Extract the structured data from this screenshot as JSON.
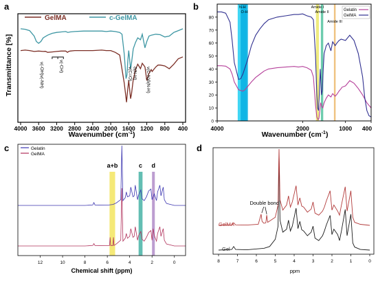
{
  "panels": [
    {
      "letter": "a"
    },
    {
      "letter": "b"
    },
    {
      "letter": "c"
    },
    {
      "letter": "d"
    }
  ],
  "chart_data": [
    {
      "type": "line",
      "panel": "a",
      "xlabel": "Wavenumber (cm",
      "xlabel_sup": "-1",
      "xlabel_close": ")",
      "ylabel": "Transmittance [%]",
      "xlim": [
        4000,
        400
      ],
      "x_reversed": true,
      "xticks": [
        4000,
        3600,
        3200,
        2800,
        2400,
        2000,
        1600,
        1200,
        800,
        400
      ],
      "xtick_labels": [
        "4000",
        "3600",
        "3200",
        "2800",
        "2400",
        "2000",
        "1600",
        "1200",
        "800",
        "400"
      ],
      "y_offset_scale": [
        0,
        10
      ],
      "colors": {
        "GelMA": "#7b2e25",
        "c-GelMA": "#3d96a3"
      },
      "series": [
        {
          "name": "GelMA",
          "x": [
            4000,
            3900,
            3800,
            3700,
            3600,
            3500,
            3450,
            3400,
            3300,
            3200,
            3100,
            3000,
            2960,
            2930,
            2900,
            2800,
            2700,
            2600,
            2400,
            2200,
            2100,
            2000,
            1900,
            1800,
            1700,
            1650,
            1630,
            1600,
            1560,
            1540,
            1500,
            1450,
            1400,
            1340,
            1300,
            1240,
            1200,
            1150,
            1100,
            1080,
            1000,
            950,
            900,
            800,
            700,
            600,
            500,
            400
          ],
          "values": [
            7.0,
            7.05,
            7.0,
            6.9,
            6.95,
            6.9,
            6.92,
            6.8,
            6.85,
            6.9,
            6.95,
            6.95,
            6.8,
            6.9,
            6.95,
            7.0,
            7.0,
            7.0,
            7.0,
            7.05,
            7.0,
            7.0,
            6.8,
            6.5,
            3.4,
            1.3,
            2.4,
            3.7,
            1.7,
            2.2,
            3.8,
            4.9,
            5.5,
            5.0,
            5.6,
            5.2,
            3.7,
            4.5,
            4.9,
            4.7,
            5.2,
            5.4,
            5.4,
            5.3,
            5.0,
            5.5,
            6.1,
            6.3
          ]
        },
        {
          "name": "c-GelMA",
          "x": [
            4000,
            3900,
            3800,
            3700,
            3650,
            3600,
            3550,
            3500,
            3400,
            3300,
            3200,
            3100,
            3000,
            2950,
            2900,
            2800,
            2600,
            2400,
            2200,
            2100,
            2000,
            1900,
            1800,
            1750,
            1700,
            1660,
            1640,
            1620,
            1600,
            1560,
            1540,
            1500,
            1450,
            1400,
            1340,
            1300,
            1240,
            1200,
            1150,
            1100,
            1000,
            900,
            800,
            700,
            600,
            500,
            400
          ],
          "values": [
            9.4,
            9.35,
            9.2,
            8.6,
            8.0,
            7.8,
            8.0,
            8.4,
            8.7,
            8.9,
            9.0,
            9.05,
            9.1,
            9.0,
            9.05,
            9.1,
            9.15,
            9.15,
            9.15,
            9.1,
            9.15,
            9.1,
            9.0,
            8.8,
            6.6,
            3.9,
            4.3,
            5.9,
            7.0,
            5.0,
            5.6,
            7.2,
            7.9,
            8.4,
            8.2,
            8.8,
            7.3,
            8.0,
            8.6,
            8.7,
            8.8,
            8.75,
            8.5,
            8.6,
            9.0,
            9.2,
            9.4
          ]
        }
      ],
      "annotations": [
        {
          "text": "v(-OH)v(-NH)",
          "x": 3600
        },
        {
          "text": "v(-CH)",
          "x": 3170
        },
        {
          "text": "v(C=O)",
          "x": 1640
        },
        {
          "text": "δ(N-H)",
          "x": 1540
        },
        {
          "text": "v(C-N)δ(N-H)",
          "x": 1240
        }
      ]
    },
    {
      "type": "line",
      "panel": "b",
      "xlabel": "Wavenumber (cm",
      "xlabel_sup": "-1",
      "xlabel_close": ")",
      "xlim": [
        4000,
        400
      ],
      "x_reversed": true,
      "xticks": [
        4000,
        2000,
        1000,
        400
      ],
      "xtick_labels": [
        "4000",
        "2000",
        "1000",
        "400"
      ],
      "ylim": [
        0,
        90
      ],
      "yticks": [
        0,
        10,
        20,
        30,
        40,
        50,
        60,
        70,
        80
      ],
      "ytick_labels": [
        "0",
        "10",
        "20",
        "30",
        "40",
        "50",
        "60",
        "70",
        "80"
      ],
      "legend_position": "top-right",
      "colors": {
        "Gelatin": "#b5409a",
        "GelMA": "#2f2f8f"
      },
      "bands": [
        {
          "name": "N-H",
          "from": 3520,
          "to": 3300,
          "color": "#00c8f0"
        },
        {
          "name": "O-H",
          "from": 3450,
          "to": 3280,
          "color": "#00a9e0"
        },
        {
          "name": "Amide I",
          "from": 1690,
          "to": 1620,
          "color": "#e8e24a"
        },
        {
          "name": "Amide II",
          "from": 1575,
          "to": 1520,
          "color": "#2fb68a"
        },
        {
          "name": "Amide III",
          "from": 1270,
          "to": 1230,
          "color": "#e8a94d"
        }
      ],
      "series": [
        {
          "name": "Gelatin",
          "x": [
            4000,
            3900,
            3800,
            3700,
            3650,
            3600,
            3500,
            3400,
            3350,
            3300,
            3200,
            3100,
            3000,
            2900,
            2800,
            2600,
            2400,
            2200,
            2100,
            2000,
            1900,
            1800,
            1750,
            1700,
            1670,
            1640,
            1620,
            1600,
            1580,
            1550,
            1530,
            1500,
            1450,
            1400,
            1340,
            1300,
            1240,
            1200,
            1150,
            1100,
            1080,
            1000,
            900,
            800,
            700,
            600,
            500,
            400
          ],
          "values": [
            42.5,
            42.5,
            42.2,
            40.0,
            36.0,
            30.0,
            24.0,
            23.0,
            24.0,
            26.0,
            30.0,
            33.5,
            36.0,
            38.5,
            40.0,
            41.0,
            41.5,
            42.0,
            41.5,
            42.0,
            41.0,
            39.0,
            34.0,
            12.0,
            3.0,
            1.0,
            2.0,
            8.0,
            14.0,
            11.0,
            10.0,
            14.0,
            17.5,
            20.0,
            18.5,
            21.0,
            19.0,
            20.5,
            23.0,
            25.0,
            26.0,
            27.0,
            31.0,
            29.0,
            25.0,
            20.0,
            14.0,
            10.0
          ]
        },
        {
          "name": "GelMA",
          "x": [
            4000,
            3900,
            3800,
            3700,
            3650,
            3600,
            3500,
            3450,
            3400,
            3300,
            3200,
            3100,
            3000,
            2900,
            2800,
            2600,
            2400,
            2200,
            2100,
            2000,
            1900,
            1800,
            1750,
            1700,
            1670,
            1650,
            1630,
            1610,
            1590,
            1560,
            1540,
            1520,
            1500,
            1450,
            1400,
            1340,
            1300,
            1240,
            1200,
            1150,
            1100,
            1000,
            900,
            800,
            700,
            600,
            550,
            500,
            450,
            400
          ],
          "values": [
            84.0,
            84.0,
            83.0,
            76.0,
            62.0,
            45.0,
            32.0,
            32.5,
            36.0,
            46.0,
            58.0,
            66.0,
            71.0,
            75.0,
            78.0,
            80.0,
            81.0,
            82.0,
            82.0,
            82.5,
            81.0,
            80.0,
            78.0,
            50.0,
            20.0,
            10.0,
            8.0,
            22.0,
            40.0,
            20.0,
            24.0,
            40.0,
            52.0,
            58.0,
            60.0,
            54.0,
            61.0,
            58.0,
            60.0,
            62.0,
            63.0,
            62.0,
            66.0,
            62.0,
            52.0,
            34.0,
            18.0,
            8.0,
            4.0,
            3.0
          ]
        }
      ]
    },
    {
      "type": "line",
      "panel": "c",
      "xlabel": "Chemical shift (ppm)",
      "xlim": [
        14,
        -1
      ],
      "x_reversed": true,
      "xticks": [
        12,
        10,
        8,
        6,
        4,
        2,
        0
      ],
      "xtick_labels": [
        "12",
        "10",
        "8",
        "6",
        "4",
        "2",
        "0"
      ],
      "legend_position": "top-left",
      "colors": {
        "Gelatin": "#3b35b0",
        "GelMA": "#b0305a"
      },
      "bands": [
        {
          "name": "a+b",
          "from": 5.8,
          "to": 5.3,
          "color": "#f1e14a"
        },
        {
          "name": "c",
          "from": 3.2,
          "to": 2.85,
          "color": "#2fa89a"
        },
        {
          "name": "d",
          "from": 2.0,
          "to": 1.75,
          "color": "#a57cc0"
        }
      ],
      "series": [
        {
          "name": "Gelatin",
          "x": [
            14,
            8,
            7.3,
            7.2,
            7.1,
            6,
            5.5,
            5.2,
            4.8,
            4.7,
            4.6,
            4.4,
            4.3,
            4.2,
            4.0,
            3.9,
            3.7,
            3.6,
            3.5,
            3.3,
            3.2,
            3.0,
            2.9,
            2.7,
            2.5,
            2.3,
            2.1,
            2.0,
            1.8,
            1.6,
            1.5,
            1.3,
            1.2,
            1.0,
            0.9,
            0.7,
            0,
            -1
          ],
          "values": [
            0,
            0,
            0.05,
            0.3,
            0.05,
            0.03,
            0.1,
            0.25,
            0.6,
            6.4,
            0.5,
            0.8,
            1.4,
            0.9,
            1.0,
            1.9,
            0.9,
            1.0,
            2.1,
            0.6,
            1.1,
            1.6,
            0.7,
            0.5,
            0.9,
            1.5,
            1.7,
            0.6,
            1.2,
            0.5,
            1.4,
            2.1,
            1.0,
            1.9,
            0.6,
            0.2,
            0,
            0
          ]
        },
        {
          "name": "GelMA",
          "x": [
            14,
            8,
            7.3,
            7.2,
            7.1,
            6,
            5.8,
            5.75,
            5.7,
            5.5,
            5.45,
            5.4,
            5.2,
            4.8,
            4.7,
            4.6,
            4.4,
            4.3,
            4.2,
            4.0,
            3.9,
            3.7,
            3.6,
            3.5,
            3.3,
            3.2,
            3.0,
            2.9,
            2.7,
            2.5,
            2.3,
            2.1,
            2.0,
            1.9,
            1.8,
            1.6,
            1.5,
            1.3,
            1.2,
            1.0,
            0.9,
            0.7,
            0,
            -1
          ],
          "values": [
            0,
            0,
            0.05,
            0.25,
            0.05,
            0.03,
            0.05,
            0.9,
            0.05,
            0.05,
            0.9,
            0.05,
            0.2,
            0.6,
            6.0,
            0.5,
            0.8,
            1.3,
            0.8,
            1.0,
            1.8,
            0.9,
            1.0,
            2.0,
            0.6,
            1.1,
            1.5,
            0.7,
            0.5,
            0.9,
            1.4,
            1.6,
            0.6,
            1.8,
            1.1,
            0.5,
            1.3,
            2.0,
            1.0,
            1.8,
            0.6,
            0.2,
            0,
            0
          ]
        }
      ]
    },
    {
      "type": "line",
      "panel": "d",
      "xlabel": "ppm",
      "xlim": [
        8,
        0
      ],
      "x_reversed": true,
      "xticks": [
        8,
        7,
        6,
        5,
        4,
        3,
        2,
        1,
        0
      ],
      "xtick_labels": [
        "8",
        "7",
        "6",
        "5",
        "4",
        "3",
        "2",
        "1",
        "0"
      ],
      "colors": {
        "Gel": "#1a1a1a",
        "GelMA": "#b23a3a"
      },
      "annotations": [
        {
          "text": "Double bond",
          "x": 5.5
        }
      ],
      "series": [
        {
          "name": "Gel",
          "x": [
            8,
            7.3,
            7.2,
            7.1,
            6.5,
            5.6,
            5.3,
            5.0,
            4.85,
            4.8,
            4.75,
            4.6,
            4.4,
            4.3,
            4.2,
            4.1,
            3.9,
            3.8,
            3.7,
            3.6,
            3.5,
            3.3,
            3.1,
            3.0,
            2.9,
            2.7,
            2.5,
            2.4,
            2.3,
            2.1,
            2.0,
            1.9,
            1.7,
            1.6,
            1.5,
            1.3,
            1.2,
            1.0,
            0.9,
            0.8,
            0.5,
            0
          ],
          "values": [
            0,
            0.1,
            0.6,
            0.1,
            0.05,
            0.3,
            0.6,
            1.8,
            4.0,
            16.0,
            5.0,
            3.0,
            3.5,
            5.0,
            3.2,
            4.0,
            7.0,
            3.6,
            4.8,
            3.4,
            3.2,
            2.4,
            3.0,
            4.0,
            2.0,
            1.6,
            2.4,
            3.2,
            4.2,
            5.8,
            2.6,
            3.5,
            2.6,
            1.6,
            3.2,
            6.8,
            2.4,
            6.0,
            1.2,
            0.5,
            0.1,
            0
          ]
        },
        {
          "name": "GelMA",
          "x": [
            8,
            7.3,
            7.2,
            7.1,
            6.5,
            5.9,
            5.75,
            5.7,
            5.6,
            5.5,
            5.45,
            5.4,
            5.0,
            4.85,
            4.8,
            4.75,
            4.6,
            4.4,
            4.3,
            4.2,
            4.1,
            3.9,
            3.8,
            3.7,
            3.6,
            3.5,
            3.3,
            3.1,
            3.0,
            2.9,
            2.7,
            2.5,
            2.4,
            2.3,
            2.1,
            2.0,
            1.9,
            1.7,
            1.6,
            1.5,
            1.3,
            1.2,
            1.0,
            0.9,
            0.8,
            0.5,
            0
          ],
          "values": [
            0,
            0.1,
            0.5,
            0.1,
            0.05,
            0.2,
            2.2,
            0.8,
            0.4,
            0.5,
            2.0,
            0.6,
            1.6,
            4.0,
            15.0,
            5.0,
            3.0,
            4.0,
            5.8,
            3.6,
            4.6,
            7.8,
            4.0,
            5.4,
            3.8,
            3.6,
            2.6,
            3.2,
            4.6,
            2.4,
            2.0,
            2.8,
            3.6,
            4.8,
            6.8,
            3.0,
            4.0,
            2.8,
            2.0,
            4.0,
            7.6,
            2.8,
            6.8,
            1.6,
            0.6,
            0.2,
            0
          ]
        }
      ]
    }
  ]
}
